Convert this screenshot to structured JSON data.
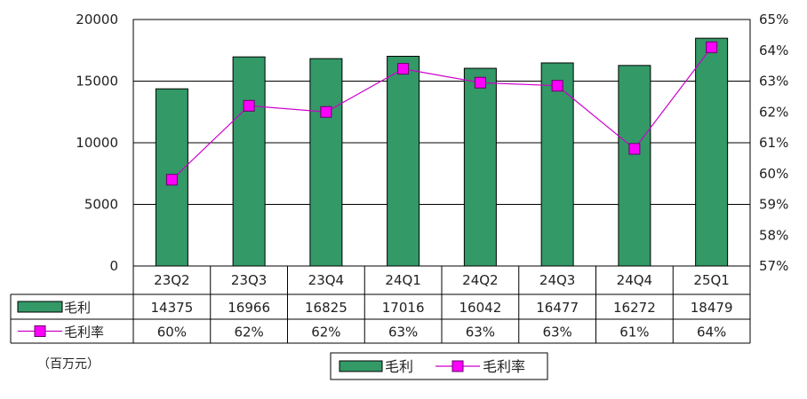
{
  "chart_data": {
    "type": "bar",
    "categories": [
      "23Q2",
      "23Q3",
      "23Q4",
      "24Q1",
      "24Q2",
      "24Q3",
      "24Q4",
      "25Q1"
    ],
    "series": [
      {
        "name": "毛利",
        "type": "bar",
        "axis": "left",
        "values": [
          14375,
          16966,
          16825,
          17016,
          16042,
          16477,
          16272,
          18479
        ],
        "color": "#339966"
      },
      {
        "name": "毛利率",
        "type": "line",
        "axis": "right",
        "values": [
          59.8,
          62.2,
          62.0,
          63.4,
          62.95,
          62.85,
          60.8,
          64.1
        ],
        "color": "#cc00cc",
        "marker": "square"
      }
    ],
    "table": {
      "rows": [
        {
          "label": "毛利",
          "values": [
            "14375",
            "16966",
            "16825",
            "17016",
            "16042",
            "16477",
            "16272",
            "18479"
          ]
        },
        {
          "label": "毛利率",
          "values": [
            "60%",
            "62%",
            "62%",
            "63%",
            "63%",
            "63%",
            "61%",
            "64%"
          ]
        }
      ]
    },
    "y_left": {
      "range": [
        0,
        20000
      ],
      "ticks": [
        "0",
        "5000",
        "10000",
        "15000",
        "20000"
      ],
      "tick_values": [
        0,
        5000,
        10000,
        15000,
        20000
      ]
    },
    "y_right": {
      "range": [
        57,
        65
      ],
      "ticks": [
        "57%",
        "58%",
        "59%",
        "60%",
        "61%",
        "62%",
        "63%",
        "64%",
        "65%"
      ],
      "tick_values": [
        57,
        58,
        59,
        60,
        61,
        62,
        63,
        64,
        65
      ]
    },
    "unit_note": "（百万元）",
    "legend": [
      "毛利",
      "毛利率"
    ],
    "legend_position": "bottom",
    "grid": true
  }
}
